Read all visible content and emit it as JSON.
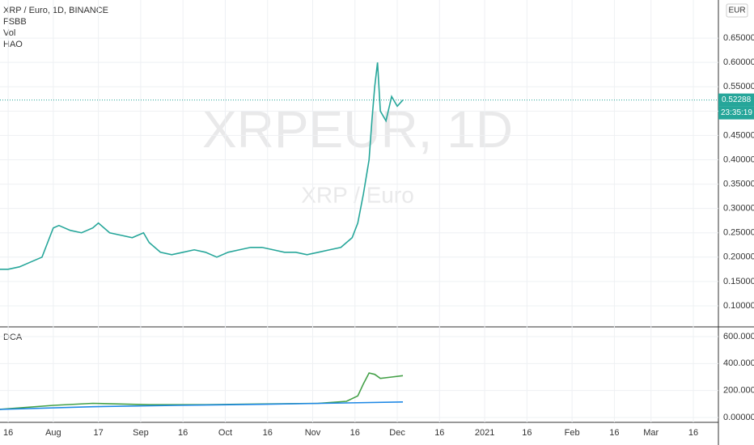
{
  "chart_data": {
    "type": "line",
    "title": "XRP / Euro, 1D, BINANCE",
    "indicators": [
      "FSBB",
      "Vol",
      "HAO"
    ],
    "watermark": "XRPEUR, 1D",
    "watermark_sub": "XRP / Euro",
    "currency": "EUR",
    "last_price_label": "0.52288",
    "countdown": "23:35:19",
    "xlim": [
      -2.9,
      251.9
    ],
    "xticks": [
      {
        "value": 0,
        "label": "16"
      },
      {
        "value": 16,
        "label": "Aug"
      },
      {
        "value": 32,
        "label": "17"
      },
      {
        "value": 47,
        "label": "Sep"
      },
      {
        "value": 62,
        "label": "16"
      },
      {
        "value": 77,
        "label": "Oct"
      },
      {
        "value": 92,
        "label": "16"
      },
      {
        "value": 108,
        "label": "Nov"
      },
      {
        "value": 123,
        "label": "16"
      },
      {
        "value": 138,
        "label": "Dec"
      },
      {
        "value": 153,
        "label": "16"
      },
      {
        "value": 169,
        "label": "2021"
      },
      {
        "value": 184,
        "label": "16"
      },
      {
        "value": 200,
        "label": "Feb"
      },
      {
        "value": 215,
        "label": "16"
      },
      {
        "value": 228,
        "label": "Mar"
      },
      {
        "value": 243,
        "label": "16"
      }
    ],
    "ylim": [
      0.0567,
      0.7283
    ],
    "yticks": [
      {
        "value": 0.1,
        "label": "0.10000"
      },
      {
        "value": 0.15,
        "label": "0.15000"
      },
      {
        "value": 0.2,
        "label": "0.20000"
      },
      {
        "value": 0.25,
        "label": "0.25000"
      },
      {
        "value": 0.3,
        "label": "0.30000"
      },
      {
        "value": 0.35,
        "label": "0.35000"
      },
      {
        "value": 0.4,
        "label": "0.40000"
      },
      {
        "value": 0.45,
        "label": "0.45000"
      },
      {
        "value": 0.5,
        "label": "0.50000"
      },
      {
        "value": 0.55,
        "label": "0.55000"
      },
      {
        "value": 0.6,
        "label": "0.60000"
      },
      {
        "value": 0.65,
        "label": "0.65000"
      }
    ],
    "x": [
      -3,
      0,
      4,
      8,
      12,
      14,
      16,
      18,
      22,
      26,
      30,
      32,
      36,
      40,
      44,
      48,
      50,
      54,
      58,
      62,
      66,
      70,
      74,
      78,
      82,
      86,
      90,
      94,
      98,
      102,
      106,
      110,
      114,
      118,
      122,
      124,
      126,
      128,
      129,
      130,
      131,
      132,
      134,
      136,
      138,
      140
    ],
    "series": [
      {
        "name": "XRPEUR",
        "color": "#26a69a",
        "values": [
          0.175,
          0.175,
          0.18,
          0.19,
          0.2,
          0.23,
          0.26,
          0.265,
          0.255,
          0.25,
          0.26,
          0.27,
          0.25,
          0.245,
          0.24,
          0.25,
          0.23,
          0.21,
          0.205,
          0.21,
          0.215,
          0.21,
          0.2,
          0.21,
          0.215,
          0.22,
          0.22,
          0.215,
          0.21,
          0.21,
          0.205,
          0.21,
          0.215,
          0.22,
          0.24,
          0.27,
          0.33,
          0.4,
          0.48,
          0.55,
          0.6,
          0.5,
          0.48,
          0.53,
          0.51,
          0.52288
        ]
      }
    ],
    "dca": {
      "title": "DCA",
      "ylim": [
        -36,
        666
      ],
      "yticks": [
        {
          "value": 0,
          "label": "0.00000"
        },
        {
          "value": 200,
          "label": "200.00000"
        },
        {
          "value": 400,
          "label": "400.00000"
        },
        {
          "value": 600,
          "label": "600.00000"
        }
      ],
      "series": [
        {
          "color": "#43a047",
          "x": [
            -3,
            16,
            30,
            50,
            70,
            90,
            110,
            120,
            124,
            126,
            128,
            130,
            132,
            136,
            140
          ],
          "values": [
            60,
            90,
            105,
            95,
            95,
            100,
            105,
            120,
            160,
            250,
            330,
            320,
            290,
            300,
            310
          ]
        },
        {
          "color": "#1e88e5",
          "x": [
            -3,
            30,
            60,
            90,
            120,
            140
          ],
          "values": [
            60,
            80,
            90,
            98,
            108,
            115
          ]
        }
      ]
    }
  }
}
